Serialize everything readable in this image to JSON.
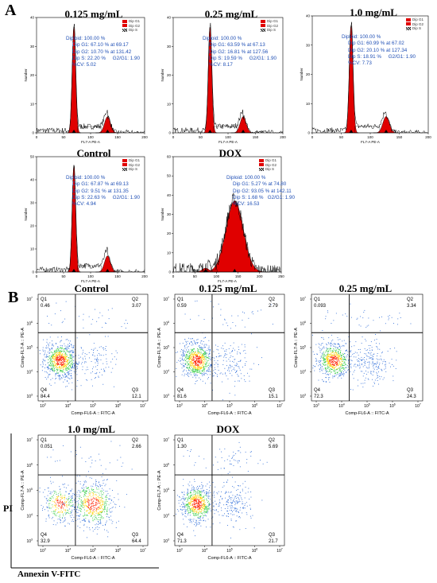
{
  "panel_a_label": "A",
  "panel_b_label": "B",
  "pi_label": "PI",
  "annexin_label": "Annexin V-FITC",
  "legend": [
    "Dip G1",
    "Dip G2",
    "Dip S"
  ],
  "colors": {
    "g1": "#e00000",
    "g2": "#e00000",
    "stats_text": "#1f4fb5",
    "flow_dense": "#ff2000"
  },
  "chart_data": [
    {
      "type": "histogram",
      "id": "cc-0125",
      "title": "0.125 mg/mL",
      "xlabel": "FL7-A PE-A",
      "ylabel": "Number",
      "xlim": [
        0,
        200
      ],
      "ylim": [
        0,
        40
      ],
      "xticks": [
        0,
        50,
        100,
        150,
        200
      ],
      "yticks": [
        0,
        10,
        20,
        30,
        40
      ],
      "stats": [
        "Diploid: 100.00 %",
        "Dip G1: 67.10 % at 69.17",
        "Dip G2: 10.70 % at 131.42",
        "Dip S: 22.20 %     G2/G1: 1.90",
        "%CV: 5.02"
      ],
      "peaks": {
        "g1": 69.17,
        "g2": 131.42
      }
    },
    {
      "type": "histogram",
      "id": "cc-025",
      "title": "0.25 mg/mL",
      "xlabel": "FL7-A PE-A",
      "ylabel": "Number",
      "xlim": [
        0,
        200
      ],
      "ylim": [
        0,
        40
      ],
      "xticks": [
        0,
        50,
        100,
        150,
        200
      ],
      "yticks": [
        0,
        10,
        20,
        30,
        40
      ],
      "stats": [
        "Diploid: 100.00 %",
        "Dip G1: 63.59 % at 67.13",
        "Dip G2: 16.81 % at 127.56",
        "Dip S: 19.59 %     G2/G1: 1.90",
        "%CV: 8.17"
      ],
      "peaks": {
        "g1": 67.13,
        "g2": 127.56
      }
    },
    {
      "type": "histogram",
      "id": "cc-10",
      "title": "1.0 mg/mL",
      "xlabel": "FL7-A PE-A",
      "ylabel": "Number",
      "xlim": [
        0,
        200
      ],
      "ylim": [
        0,
        40
      ],
      "xticks": [
        0,
        50,
        100,
        150,
        200
      ],
      "yticks": [
        0,
        10,
        20,
        30,
        40
      ],
      "stats": [
        "Diploid: 100.00 %",
        "Dip G1: 60.99 % at 67.02",
        "Dip G2: 20.10 % at 127.34",
        "Dip S: 18.91 %     G2/G1: 1.90",
        "%CV: 7.73"
      ],
      "peaks": {
        "g1": 67.02,
        "g2": 127.34
      }
    },
    {
      "type": "histogram",
      "id": "cc-control",
      "title": "Control",
      "xlabel": "FL7-A PE-A",
      "ylabel": "Number",
      "xlim": [
        0,
        200
      ],
      "ylim": [
        0,
        50
      ],
      "xticks": [
        0,
        50,
        100,
        150,
        200
      ],
      "yticks": [
        0,
        10,
        20,
        30,
        40,
        50
      ],
      "stats": [
        "Diploid: 100.00 %",
        "Dip G1: 67.87 % at 69.13",
        "Dip G2: 9.51 % at 131.35",
        "Dip S: 22.63 %     G2/G1: 1.90",
        "%CV: 4.94"
      ],
      "peaks": {
        "g1": 69.13,
        "g2": 131.35
      }
    },
    {
      "type": "histogram",
      "id": "cc-dox",
      "title": "DOX",
      "xlabel": "FL7-A PE-A",
      "ylabel": "Number",
      "xlim": [
        0,
        250
      ],
      "ylim": [
        0,
        60
      ],
      "xticks": [
        0,
        50,
        100,
        150,
        200,
        250
      ],
      "yticks": [
        0,
        10,
        20,
        30,
        40,
        50,
        60
      ],
      "stats": [
        "Diploid: 100.00 %",
        "Dip G1: 5.27 % at 74.80",
        "Dip G2: 93.05 % at 142.11",
        "Dip S: 1.68 %   G2/G1: 1.90",
        "%CV: 16.53"
      ],
      "peaks": {
        "g1": 74.8,
        "g2": 142.11
      }
    },
    {
      "type": "scatter",
      "id": "fc-control",
      "title": "Control",
      "xlabel": "Comp-FL6-A :: FITC-A",
      "ylabel": "Comp-FL7-A :: PE-A",
      "quadrants": {
        "Q1": "0.46",
        "Q2": "3.07",
        "Q3": "12.1",
        "Q4": "84.4"
      },
      "axis_exponents": [
        3,
        4,
        5,
        6,
        7
      ]
    },
    {
      "type": "scatter",
      "id": "fc-0125",
      "title": "0.125 mg/mL",
      "xlabel": "Comp-FL6-A :: FITC-A",
      "ylabel": "Comp-FL7-A :: PE-A",
      "quadrants": {
        "Q1": "0.59",
        "Q2": "2.79",
        "Q3": "15.1",
        "Q4": "81.6"
      },
      "axis_exponents": [
        3,
        4,
        5,
        6,
        7
      ]
    },
    {
      "type": "scatter",
      "id": "fc-025",
      "title": "0.25 mg/mL",
      "xlabel": "Comp-FL6-A :: FITC-A",
      "ylabel": "Comp-FL7-A :: PE-A",
      "quadrants": {
        "Q1": "0.093",
        "Q2": "3.34",
        "Q3": "24.3",
        "Q4": "72.3"
      },
      "axis_exponents": [
        3,
        4,
        5,
        6,
        7
      ]
    },
    {
      "type": "scatter",
      "id": "fc-10",
      "title": "1.0 mg/mL",
      "xlabel": "Comp-FL6-A :: FITC-A",
      "ylabel": "Comp-FL7-A :: PE-A",
      "quadrants": {
        "Q1": "0.051",
        "Q2": "2.66",
        "Q3": "64.4",
        "Q4": "32.9"
      },
      "axis_exponents": [
        3,
        4,
        5,
        6,
        7
      ]
    },
    {
      "type": "scatter",
      "id": "fc-dox",
      "title": "DOX",
      "xlabel": "Comp-FL6-A :: FITC-A",
      "ylabel": "Comp-FL7-A :: PE-A",
      "quadrants": {
        "Q1": "1.30",
        "Q2": "5.69",
        "Q3": "21.7",
        "Q4": "71.3"
      },
      "axis_exponents": [
        3,
        4,
        5,
        6,
        7
      ]
    }
  ]
}
